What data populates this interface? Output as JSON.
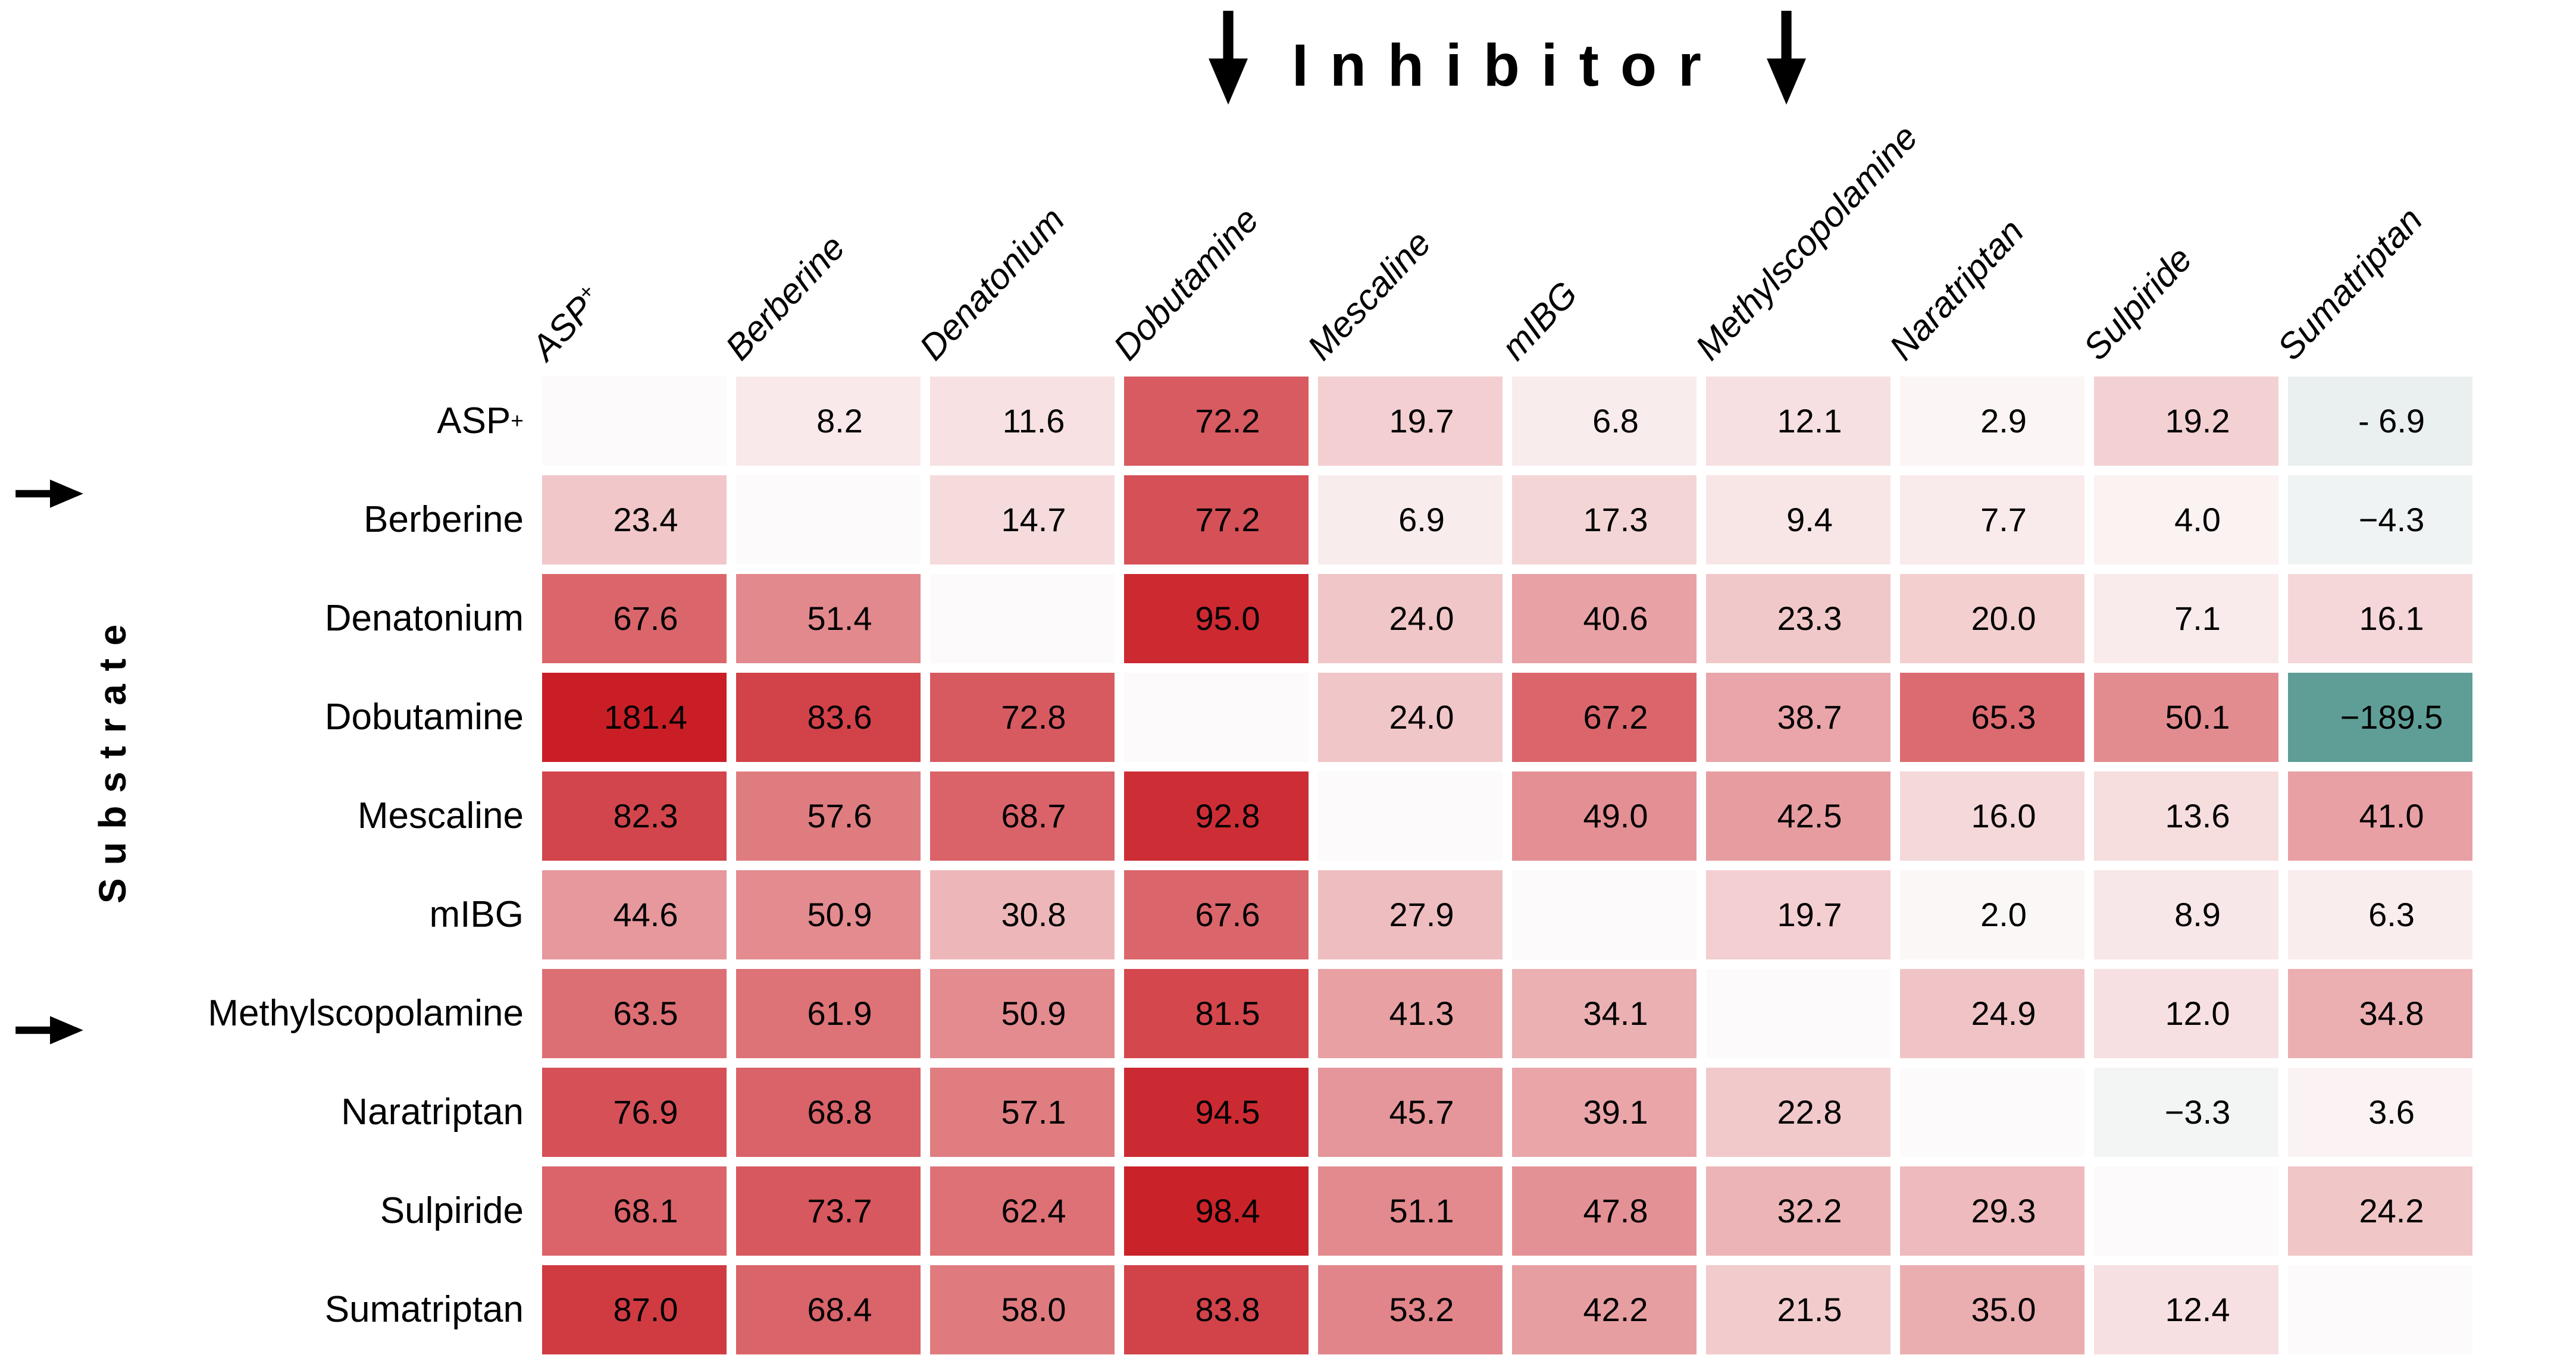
{
  "title": {
    "label": "Inhibitor"
  },
  "chart_data": {
    "type": "heatmap",
    "x_axis_title": "Inhibitor",
    "y_axis_title": "Substrate",
    "columns": [
      "ASP⁺",
      "Berberine",
      "Denatonium",
      "Dobutamine",
      "Mescaline",
      "mIBG",
      "Methylscopolamine",
      "Naratriptan",
      "Sulpiride",
      "Sumatriptan"
    ],
    "rows": [
      "ASP⁺",
      "Berberine",
      "Denatonium",
      "Dobutamine",
      "Mescaline",
      "mIBG",
      "Methylscopolamine",
      "Naratriptan",
      "Sulpiride",
      "Sumatriptan"
    ],
    "matrix": [
      [
        "",
        "8.2",
        "11.6",
        "72.2",
        "19.7",
        "6.8",
        "12.1",
        "2.9",
        "19.2",
        "- 6.9"
      ],
      [
        "23.4",
        "",
        "14.7",
        "77.2",
        "6.9",
        "17.3",
        "9.4",
        "7.7",
        "4.0",
        "−4.3"
      ],
      [
        "67.6",
        "51.4",
        "",
        "95.0",
        "24.0",
        "40.6",
        "23.3",
        "20.0",
        "7.1",
        "16.1"
      ],
      [
        "181.4",
        "83.6",
        "72.8",
        "",
        "24.0",
        "67.2",
        "38.7",
        "65.3",
        "50.1",
        "−189.5"
      ],
      [
        "82.3",
        "57.6",
        "68.7",
        "92.8",
        "",
        "49.0",
        "42.5",
        "16.0",
        "13.6",
        "41.0"
      ],
      [
        "44.6",
        "50.9",
        "30.8",
        "67.6",
        "27.9",
        "",
        "19.7",
        "2.0",
        "8.9",
        "6.3"
      ],
      [
        "63.5",
        "61.9",
        "50.9",
        "81.5",
        "41.3",
        "34.1",
        "",
        "24.9",
        "12.0",
        "34.8"
      ],
      [
        "76.9",
        "68.8",
        "57.1",
        "94.5",
        "45.7",
        "39.1",
        "22.8",
        "",
        "−3.3",
        "3.6"
      ],
      [
        "68.1",
        "73.7",
        "62.4",
        "98.4",
        "51.1",
        "47.8",
        "32.2",
        "29.3",
        "",
        "24.2"
      ],
      [
        "87.0",
        "68.4",
        "58.0",
        "83.8",
        "53.2",
        "42.2",
        "21.5",
        "35.0",
        "12.4",
        ""
      ]
    ],
    "color_scale": {
      "base_color": "#fdfbfb",
      "positive_max_color": "#c91e26",
      "negative_max_color": "#5f9e96",
      "empty_color": "#fcfafa",
      "abs_max": 100
    },
    "legend": "none",
    "grid_lines": "off"
  }
}
